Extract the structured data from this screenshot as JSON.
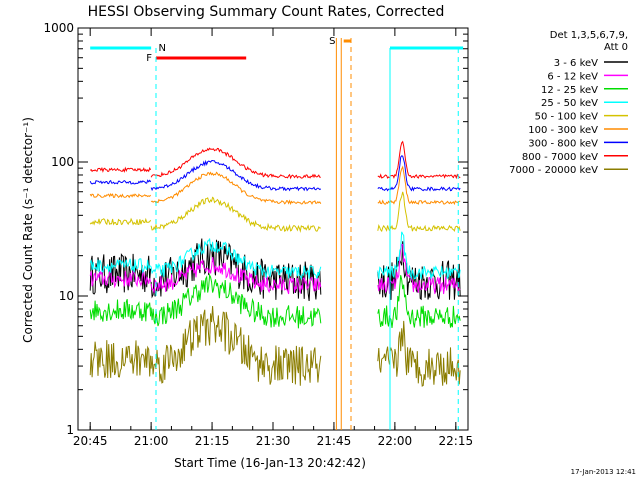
{
  "chart_data": {
    "type": "line",
    "title": "HESSI Observing Summary Count Rates, Corrected",
    "xlabel": "Start Time (16-Jan-13 20:42:42)",
    "ylabel": "Corrected Count Rate (s⁻¹ detector⁻¹)",
    "footer_date": "17-Jan-2013 12:41",
    "scale_y": "log",
    "ylim": [
      1,
      1000
    ],
    "xlim_minutes": [
      20.7,
      22.3
    ],
    "x_ticks": [
      "20:45",
      "21:00",
      "21:15",
      "21:30",
      "21:45",
      "22:00",
      "22:15"
    ],
    "x_tick_hours": [
      20.75,
      21.0,
      21.25,
      21.5,
      21.75,
      22.0,
      22.25
    ],
    "y_ticks": [
      "1",
      "10",
      "100",
      "1000"
    ],
    "y_tick_values": [
      1,
      10,
      100,
      1000
    ],
    "legend": {
      "header1": "Det 1,3,5,6,7,9,",
      "header2": "Att 0",
      "placement": "right"
    },
    "series": [
      {
        "name": "3 - 6 keV",
        "color": "#000000",
        "level": 13,
        "peak": 20,
        "noise": 0.35
      },
      {
        "name": "6 - 12 keV",
        "color": "#ff00ff",
        "level": 12,
        "peak": 17,
        "noise": 0.15
      },
      {
        "name": "12 - 25 keV",
        "color": "#00dd00",
        "level": 7,
        "peak": 12,
        "noise": 0.2
      },
      {
        "name": "25 - 50 keV",
        "color": "#00ffff",
        "level": 15,
        "peak": 24,
        "noise": 0.12
      },
      {
        "name": "50 - 100 keV",
        "color": "#d4c200",
        "level": 32,
        "peak": 52,
        "noise": 0.05
      },
      {
        "name": "100 - 300 keV",
        "color": "#ff8c00",
        "level": 50,
        "peak": 82,
        "noise": 0.03
      },
      {
        "name": "300 - 800 keV",
        "color": "#0000ff",
        "level": 63,
        "peak": 100,
        "noise": 0.03
      },
      {
        "name": "800 - 7000 keV",
        "color": "#ff0000",
        "level": 78,
        "peak": 125,
        "noise": 0.03
      },
      {
        "name": "7000 - 20000 keV",
        "color": "#8b7d00",
        "level": 3,
        "peak": 6,
        "noise": 0.35
      }
    ],
    "gaps_hours": [
      [
        21.7,
        21.93
      ]
    ],
    "flags": [
      {
        "label": "N",
        "color": "#00ffff"
      },
      {
        "label": "F",
        "color": "#ff0000"
      },
      {
        "label": "S",
        "color": "#ff8c00"
      }
    ]
  }
}
